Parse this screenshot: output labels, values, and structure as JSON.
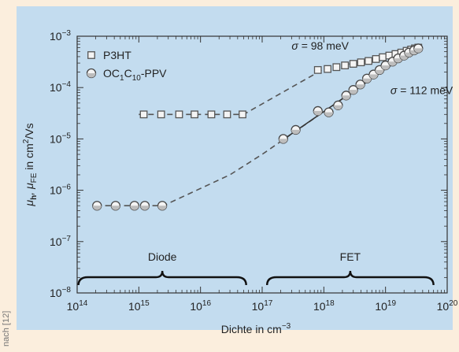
{
  "credit": "nach [12]",
  "chart_data": {
    "type": "scatter",
    "xscale": "log",
    "yscale": "log",
    "xlim": [
      100000000000000.0,
      1e+20
    ],
    "ylim": [
      1e-08,
      0.001
    ],
    "xlabel": "Dichte in cm",
    "xlabel_sup": "−3",
    "ylabel": "μ",
    "ylabel_parts": [
      "μ",
      "h",
      ", μ",
      "FE",
      " in cm",
      "2",
      "/Vs"
    ],
    "xtick_labels": [
      "14",
      "15",
      "16",
      "17",
      "18",
      "19",
      "20"
    ],
    "ytick_labels": [
      "−8",
      "−7",
      "−6",
      "−5",
      "−4",
      "−3"
    ],
    "tick_base": "10",
    "legend": {
      "position": "top-left",
      "entries": [
        {
          "label": "P3HT",
          "marker": "square"
        },
        {
          "label": "OC",
          "sub1": "1",
          "mid": "C",
          "sub2": "10",
          "tail": "-PPV",
          "marker": "circle"
        }
      ]
    },
    "series": [
      {
        "name": "P3HT",
        "marker": "square",
        "points": [
          [
            1200000000000000.0,
            3e-05
          ],
          [
            2300000000000000.0,
            3e-05
          ],
          [
            4500000000000000.0,
            3e-05
          ],
          [
            8000000000000000.0,
            3e-05
          ],
          [
            1.5e+16,
            3e-05
          ],
          [
            2.7e+16,
            3e-05
          ],
          [
            4.8e+16,
            3e-05
          ],
          [
            8e+17,
            0.00022
          ],
          [
            1.15e+18,
            0.00023
          ],
          [
            1.6e+18,
            0.00025
          ],
          [
            2.2e+18,
            0.00027
          ],
          [
            3e+18,
            0.00029
          ],
          [
            4e+18,
            0.00031
          ],
          [
            5.3e+18,
            0.00033
          ],
          [
            7e+18,
            0.00036
          ],
          [
            9e+18,
            0.00039
          ],
          [
            1.15e+19,
            0.00042
          ],
          [
            1.45e+19,
            0.00045
          ],
          [
            1.8e+19,
            0.00048
          ],
          [
            2.2e+19,
            0.00052
          ],
          [
            2.6e+19,
            0.00055
          ],
          [
            3e+19,
            0.00058
          ],
          [
            3.4e+19,
            0.0006
          ]
        ],
        "fit": [
          [
            1000000000000000.0,
            3e-05
          ],
          [
            5e+16,
            3e-05
          ],
          [
            1e+18,
            0.00023
          ],
          [
            1e+19,
            0.0004
          ],
          [
            3.5e+19,
            0.00063
          ]
        ]
      },
      {
        "name": "OC1C10-PPV",
        "marker": "circle",
        "points": [
          [
            210000000000000.0,
            5e-07
          ],
          [
            420000000000000.0,
            5e-07
          ],
          [
            850000000000000.0,
            5e-07
          ],
          [
            1250000000000000.0,
            5e-07
          ],
          [
            2400000000000000.0,
            5e-07
          ],
          [
            2.2e+17,
            1e-05
          ],
          [
            3.5e+17,
            1.5e-05
          ],
          [
            8e+17,
            3.5e-05
          ],
          [
            1.2e+18,
            3.3e-05
          ],
          [
            1.7e+18,
            4.5e-05
          ],
          [
            2.3e+18,
            7e-05
          ],
          [
            3e+18,
            9e-05
          ],
          [
            3.9e+18,
            0.000115
          ],
          [
            5e+18,
            0.00015
          ],
          [
            6.4e+18,
            0.00018
          ],
          [
            8e+18,
            0.00022
          ],
          [
            1e+19,
            0.00027
          ],
          [
            1.3e+19,
            0.00032
          ],
          [
            1.6e+19,
            0.00037
          ],
          [
            2e+19,
            0.00042
          ],
          [
            2.4e+19,
            0.00048
          ],
          [
            2.9e+19,
            0.00053
          ],
          [
            3.4e+19,
            0.00058
          ]
        ],
        "fit": [
          [
            200000000000000.0,
            5e-07
          ],
          [
            2500000000000000.0,
            5e-07
          ],
          [
            3e+16,
            2e-06
          ],
          [
            1e+17,
            5e-06
          ],
          [
            3.5e+19,
            0.00065
          ]
        ],
        "fit_solid": [
          [
            2e+17,
            9e-06
          ],
          [
            3.5e+19,
            0.00065
          ]
        ]
      }
    ],
    "annotations": [
      {
        "prefix": "σ",
        "text": " = 98 meV",
        "at": [
          3e+17,
          0.00055
        ]
      },
      {
        "prefix": "σ",
        "text": " = 112 meV",
        "at": [
          1.2e+19,
          7.5e-05
        ]
      }
    ],
    "regions": [
      {
        "label": "Diode",
        "range": [
          105000000000000.0,
          5.5e+16
        ]
      },
      {
        "label": "FET",
        "range": [
          1.2e+17,
          6e+19
        ]
      }
    ],
    "grid": false
  }
}
